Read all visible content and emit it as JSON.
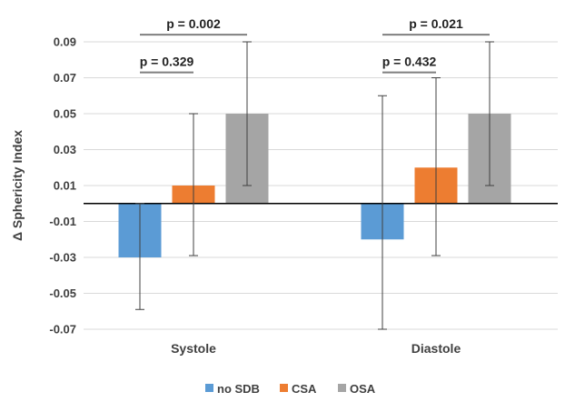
{
  "chart_data": {
    "type": "bar",
    "title": "",
    "xlabel": "",
    "ylabel": "Δ Sphericity Index",
    "ylim": [
      -0.07,
      0.09
    ],
    "yticks": [
      0.09,
      0.07,
      0.05,
      0.03,
      0.01,
      -0.01,
      -0.03,
      -0.05,
      -0.07
    ],
    "ytick_labels": [
      "0.09",
      "0.07",
      "0.05",
      "0.03",
      "0.01",
      "-0.01",
      "-0.03",
      "-0.05",
      "-0.07"
    ],
    "grid": true,
    "legend_position": "bottom",
    "categories": [
      "Systole",
      "Diastole"
    ],
    "series": [
      {
        "name": "no SDB",
        "color": "#5b9bd5",
        "values": [
          -0.03,
          -0.02
        ],
        "err_low": [
          -0.059,
          -0.07
        ],
        "err_high": [
          0.0,
          0.06
        ]
      },
      {
        "name": "CSA",
        "color": "#ed7d31",
        "values": [
          0.01,
          0.02
        ],
        "err_low": [
          -0.029,
          -0.029
        ],
        "err_high": [
          0.05,
          0.07
        ]
      },
      {
        "name": "OSA",
        "color": "#a5a5a5",
        "values": [
          0.05,
          0.05
        ],
        "err_low": [
          0.01,
          0.01
        ],
        "err_high": [
          0.09,
          0.09
        ]
      }
    ],
    "annotations": [
      {
        "category": "Systole",
        "from_series": 0,
        "to_series": 1,
        "level": 0.073,
        "label": "p = 0.329"
      },
      {
        "category": "Systole",
        "from_series": 0,
        "to_series": 2,
        "level": 0.094,
        "label": "p = 0.002"
      },
      {
        "category": "Diastole",
        "from_series": 0,
        "to_series": 1,
        "level": 0.073,
        "label": "p = 0.432"
      },
      {
        "category": "Diastole",
        "from_series": 0,
        "to_series": 2,
        "level": 0.094,
        "label": "p = 0.021"
      }
    ]
  }
}
